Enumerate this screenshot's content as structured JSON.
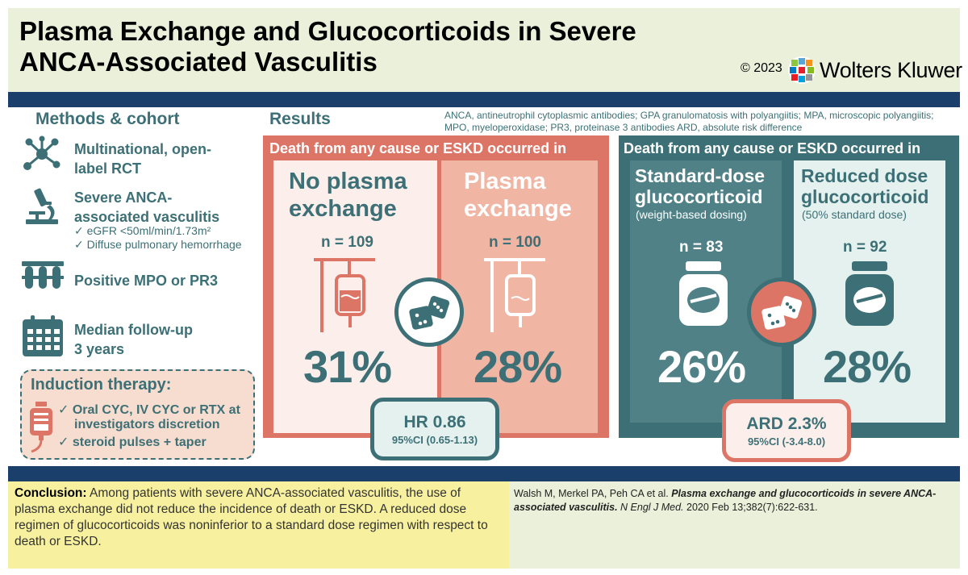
{
  "header": {
    "title_line1": "Plasma Exchange and Glucocorticoids in Severe",
    "title_line2": "ANCA-Associated Vasculitis",
    "copyright": "© 2023",
    "publisher": "Wolters Kluwer"
  },
  "methods": {
    "title": "Methods & cohort",
    "items": [
      {
        "icon": "molecule-network-icon",
        "lines": [
          "Multinational, open-",
          "label RCT"
        ]
      },
      {
        "icon": "microscope-icon",
        "lines": [
          "Severe ANCA-",
          "associated vasculitis"
        ],
        "sub": [
          "✓ eGFR <50ml/min/1.73m²",
          "✓ Diffuse pulmonary hemorrhage"
        ]
      },
      {
        "icon": "test-tubes-icon",
        "lines": [
          "Positive MPO or PR3"
        ]
      },
      {
        "icon": "calendar-icon",
        "lines": [
          "Median follow-up",
          "3 years"
        ]
      }
    ],
    "induction": {
      "title": "Induction therapy:",
      "line1": "✓ Oral CYC, IV CYC or RTX at",
      "line2": "investigators discretion",
      "line3": "✓ steroid pulses + taper"
    }
  },
  "results": {
    "title": "Results",
    "abbreviations": "ANCA, antineutrophil cytoplasmic antibodies; GPA granulomatosis with polyangiitis; MPA, microscopic polyangiitis; MPO, myeloperoxidase; PR3, proteinase 3 antibodies ARD, absolute risk difference",
    "plasma": {
      "header": "Death from any cause or ESKD occurred in",
      "arm_a": {
        "label_line1": "No plasma",
        "label_line2": "exchange",
        "n": "n = 109",
        "pct": "31%"
      },
      "arm_b": {
        "label_line1": "Plasma",
        "label_line2": "exchange",
        "n": "n = 100",
        "pct": "28%"
      },
      "stat": {
        "main": "HR 0.86",
        "ci": "95%CI (0.65-1.13)"
      }
    },
    "gluco": {
      "header": "Death from any cause or ESKD occurred in",
      "arm_a": {
        "label_line1": "Standard-dose",
        "label_line2": "glucocorticoid",
        "sub": "(weight-based dosing)",
        "n": "n = 83",
        "pct": "26%"
      },
      "arm_b": {
        "label_line1": "Reduced dose",
        "label_line2": "glucocorticoid",
        "sub": "(50% standard dose)",
        "n": "n = 92",
        "pct": "28%"
      },
      "stat": {
        "main": "ARD 2.3%",
        "ci": "95%CI (-3.4-8.0)"
      }
    }
  },
  "conclusion": {
    "label": "Conclusion:",
    "text": "Among patients with severe ANCA-associated vasculitis, the use of plasma exchange did not reduce the incidence of death or ESKD. A reduced dose regimen of glucocorticoids was noninferior to a standard dose regimen with respect to death or ESKD."
  },
  "citation": {
    "authors": "Walsh M, Merkel PA, Peh CA et al.",
    "title": "Plasma exchange and glucocorticoids in severe ANCA-associated vasculitis.",
    "journal": "N Engl J Med.",
    "details": "2020 Feb 13;382(7):622-631."
  },
  "colors": {
    "teal": "#3c7076",
    "coral": "#dd7566",
    "navy": "#1a3f6b",
    "header_bg": "#eaf0da",
    "conclusion_bg": "#f7f19f"
  }
}
